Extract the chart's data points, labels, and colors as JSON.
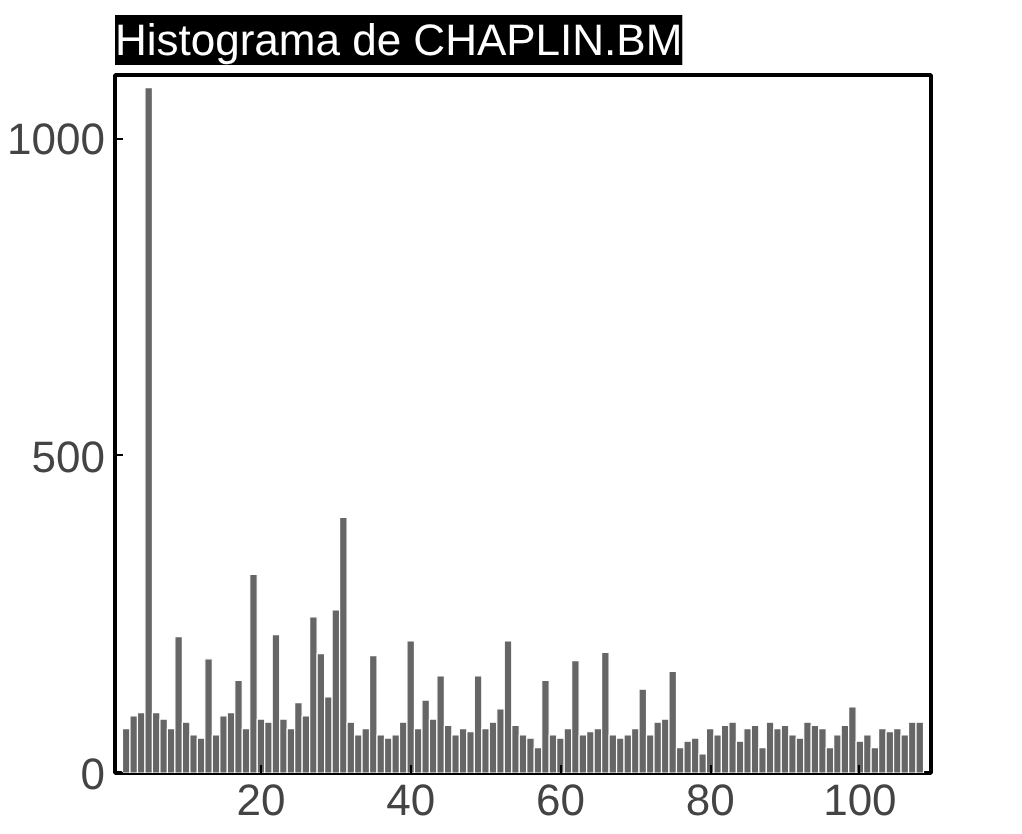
{
  "chart_data": {
    "type": "histogram",
    "title": "Histograma de CHAPLIN.BM",
    "bins": [
      1.5,
      2.5,
      3.5,
      4.5,
      5.5,
      6.5,
      7.5,
      8.5,
      9.5,
      10.5,
      11.5,
      12.5,
      13.5,
      14.5,
      15.5,
      16.5,
      17.5,
      18.5,
      19.5,
      20.5,
      21.5,
      22.5,
      23.5,
      24.5,
      25.5,
      26.5,
      27.5,
      28.5,
      29.5,
      30.5,
      31.5,
      32.5,
      33.5,
      34.5,
      35.5,
      36.5,
      37.5,
      38.5,
      39.5,
      40.5,
      41.5,
      42.5,
      43.5,
      44.5,
      45.5,
      46.5,
      47.5,
      48.5,
      49.5,
      50.5,
      51.5,
      52.5,
      53.5,
      54.5,
      55.5,
      56.5,
      57.5,
      58.5,
      59.5,
      60.5,
      61.5,
      62.5,
      63.5,
      64.5,
      65.5,
      66.5,
      67.5,
      68.5,
      69.5,
      70.5,
      71.5,
      72.5,
      73.5,
      74.5,
      75.5,
      76.5,
      77.5,
      78.5,
      79.5,
      80.5,
      81.5,
      82.5,
      83.5,
      84.5,
      85.5,
      86.5,
      87.5,
      88.5,
      89.5,
      90.5,
      91.5,
      92.5,
      93.5,
      94.5,
      95.5,
      96.5,
      97.5,
      98.5,
      99.5,
      100.5,
      101.5,
      102.5,
      103.5,
      104.5,
      105.5,
      106.5,
      107.5,
      108.5
    ],
    "values": [
      70,
      90,
      95,
      1080,
      95,
      85,
      70,
      215,
      80,
      60,
      55,
      180,
      60,
      90,
      95,
      146,
      70,
      313,
      85,
      80,
      218,
      85,
      70,
      111,
      90,
      246,
      188,
      120,
      257,
      403,
      80,
      60,
      70,
      185,
      60,
      55,
      60,
      80,
      208,
      70,
      115,
      85,
      153,
      75,
      60,
      70,
      65,
      153,
      70,
      80,
      101,
      208,
      75,
      60,
      55,
      40,
      146,
      60,
      55,
      70,
      177,
      60,
      65,
      70,
      190,
      60,
      55,
      60,
      70,
      132,
      60,
      80,
      85,
      160,
      40,
      50,
      55,
      30,
      70,
      60,
      75,
      80,
      50,
      70,
      75,
      40,
      80,
      70,
      75,
      60,
      55,
      80,
      75,
      70,
      40,
      60,
      75,
      104,
      50,
      60,
      40,
      70,
      65,
      70,
      60,
      80,
      80
    ],
    "color": "#666666",
    "xlim": [
      0.5,
      109.5
    ],
    "xticks": [
      20,
      40,
      60,
      80,
      100
    ],
    "ylim": [
      0,
      1100
    ],
    "yticks": [
      0,
      500,
      1000
    ],
    "grid": false
  }
}
